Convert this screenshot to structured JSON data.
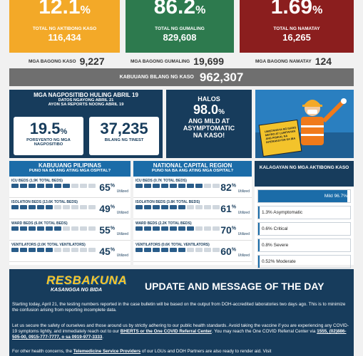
{
  "top_cards": [
    {
      "pct": "12.1",
      "unit": "%",
      "label": "TOTAL NG AKTIBONG KASO",
      "value": "116,434"
    },
    {
      "pct": "86.2",
      "unit": "%",
      "label": "TOTAL NG GUMALING",
      "value": "829,608"
    },
    {
      "pct": "1.69",
      "unit": "%",
      "label": "TOTAL NG NAMATAY",
      "value": "16,265"
    }
  ],
  "new_counts": [
    {
      "label": "MGA BAGONG KASO",
      "value": "9,227"
    },
    {
      "label": "MGA BAGONG GUMALING",
      "value": "19,699"
    },
    {
      "label": "MGA BAGONG NAMATAY",
      "value": "124"
    }
  ],
  "total": {
    "label": "KABUUANG BILANG NG KASO",
    "value": "962,307"
  },
  "positivity": {
    "title": "MGA NAGPOSITIBO HULING ABRIL 19",
    "sub1": "DATOS NGAYONG ABRIL 21",
    "sub2": "AYON SA REPORTS NOONG ABRIL 19",
    "rate": "19.5",
    "rate_unit": "%",
    "rate_label": "PORSYENTO NG MGA NAGPOSITIBO",
    "tested": "37,235",
    "tested_label": "BILANG NG TINEST"
  },
  "mild": {
    "l1": "HALOS",
    "pct": "98.0",
    "unit": "%",
    "l2": "ANG MILD AT",
    "l3": "ASYMPTOMATIC",
    "l4": "NA KASO!"
  },
  "sign_text": "UMISTANGYA NG ISANG METRO AT LUMITAHAN ANG PISIKAL NA INTERAKSYON SA IBA",
  "hosp_ph": {
    "title": "KABUUANG PILIPINAS",
    "subtitle": "PUNO NA BA ANG ATING MGA OSPITAL?",
    "rows": [
      {
        "label": "ICU BEDS (1.9K TOTAL BEDS)",
        "pct": "65",
        "value": 65
      },
      {
        "label": "ISOLATION BEDS (13.6K TOTAL BEDS)",
        "pct": "49",
        "value": 49
      },
      {
        "label": "WARD BEDS (6.0K TOTAL BEDS)",
        "pct": "55",
        "value": 55
      },
      {
        "label": "VENTILATORS (2.0K TOTAL VENTILATORS)",
        "pct": "45",
        "value": 45
      }
    ]
  },
  "hosp_ncr": {
    "title": "NATIONAL CAPITAL REGION",
    "subtitle": "PUNO NA BA ANG ATING MGA OSPITAL?",
    "rows": [
      {
        "label": "ICU BEDS (0.7K TOTAL BEDS)",
        "pct": "82",
        "value": 82
      },
      {
        "label": "ISOLATION BEDS (3.8K TOTAL BEDS)",
        "pct": "61",
        "value": 61
      },
      {
        "label": "WARD BEDS (2.2K TOTAL BEDS)",
        "pct": "70",
        "value": 70
      },
      {
        "label": "VENTILATORS (0.6K TOTAL VENTILATORS)",
        "pct": "60",
        "value": 60
      }
    ]
  },
  "pct_sign": "%",
  "utilized": "Utilized",
  "severity": {
    "title": "KALAGAYAN NG MGA AKTIBONG KASO",
    "rows": [
      {
        "label": "Mild 96.7%",
        "value": 96.7
      },
      {
        "label": "1.3% Asymptomatic",
        "value": 1.3
      },
      {
        "label": "0.6% Critical",
        "value": 0.6
      },
      {
        "label": "0.8% Severe",
        "value": 0.8
      },
      {
        "label": "0.52% Moderate",
        "value": 0.52
      }
    ]
  },
  "update": {
    "logo1": "RESBAKUNA",
    "logo2": "KASANGGA NG BIDA",
    "title": "UPDATE AND MESSAGE OF THE DAY",
    "p1": "Starting today, April 21, the testing numbers reported in the case bulletin will be based on the output from DOH-accredited laboratories two days ago. This is to minimize the confusion arising from reporting incomplete data.",
    "p2a": "Let us secure the safety of ourselves and those around us by strictly adhering to our public health standards. Avoid taking the vaccine if you are experiencing any COVID-19 symptoms lightly, and immediately reach out to our ",
    "p2b": "BHERTS or the One COVID Referral Center",
    "p2c": ". You may reach the One COVID Referral Center via ",
    "p2d": "1555, (02)886-505-00, 0915-777-7777, o sa 0919-977-3333",
    "p2e": ".",
    "p3a": "For other health concerns, the ",
    "p3b": "Telemedicine Service Providers",
    "p3c": " of our LGUs and DOH Partners are also ready to render aid. Visit"
  }
}
